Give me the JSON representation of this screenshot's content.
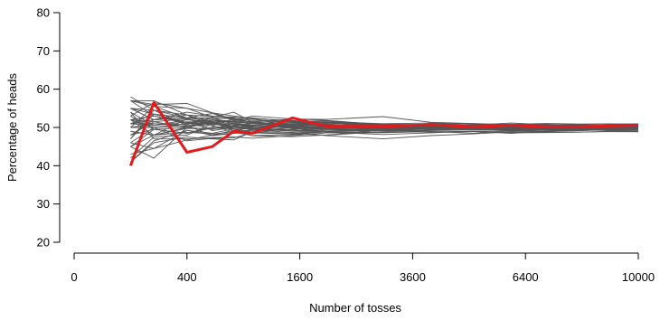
{
  "chart_data": {
    "type": "line",
    "xlabel": "Number of tosses",
    "ylabel": "Percentage of heads",
    "x_scale": "sqrt",
    "x_ticks": [
      0,
      400,
      1600,
      3600,
      6400,
      10000
    ],
    "y_ticks": [
      20,
      30,
      40,
      50,
      60,
      70,
      80
    ],
    "xlim": [
      0,
      10000
    ],
    "ylim": [
      20,
      80
    ],
    "grid": false,
    "legend": "none",
    "colors": {
      "background_runs": "#555555",
      "highlight_run": "#e41a1c"
    },
    "background_run_count": 40,
    "highlight": {
      "x": [
        100,
        200,
        400,
        600,
        800,
        1000,
        1500,
        2000,
        3000,
        4000,
        5000,
        6000,
        7000,
        8000,
        9000,
        10000
      ],
      "y": [
        40,
        56.5,
        43.5,
        45,
        49,
        48.5,
        52.5,
        50.3,
        50.3,
        50.7,
        50.2,
        50.6,
        50.2,
        50.2,
        50.4,
        50.6
      ]
    }
  }
}
